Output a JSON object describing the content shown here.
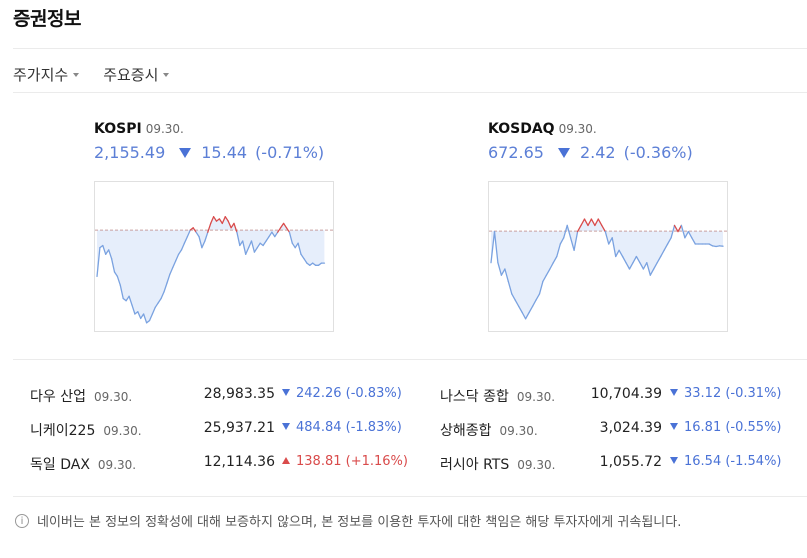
{
  "title": "증권정보",
  "tabs": [
    {
      "label": "주가지수"
    },
    {
      "label": "주요증시"
    }
  ],
  "colors": {
    "up": "#d94b4b",
    "down": "#4a72d6",
    "fill": "#e6eefb",
    "baseline": "#c9a0a0"
  },
  "indices": [
    {
      "name": "KOSPI",
      "date": "09.30.",
      "value": "2,155.49",
      "change": "15.44",
      "percent": "(-0.71%)",
      "direction": "down",
      "chart_data": {
        "type": "line",
        "baseline": 2170.93,
        "ylim": [
          2128,
          2190
        ],
        "values": [
          2150,
          2163,
          2164,
          2160,
          2162,
          2158,
          2152,
          2150,
          2146,
          2140,
          2139,
          2141,
          2137,
          2133,
          2134,
          2131,
          2133,
          2129,
          2130,
          2133,
          2136,
          2138,
          2140,
          2143,
          2147,
          2151,
          2154,
          2157,
          2160,
          2162,
          2165,
          2168,
          2171,
          2172,
          2170,
          2168,
          2163,
          2166,
          2170,
          2174,
          2177,
          2175,
          2176,
          2174,
          2177,
          2175,
          2172,
          2174,
          2170,
          2164,
          2166,
          2160,
          2163,
          2166,
          2161,
          2163,
          2165,
          2164,
          2166,
          2168,
          2170,
          2168,
          2170,
          2172,
          2174,
          2172,
          2170,
          2165,
          2163,
          2165,
          2160,
          2158,
          2156,
          2155,
          2156,
          2155,
          2155,
          2156,
          2156
        ]
      }
    },
    {
      "name": "KOSDAQ",
      "date": "09.30.",
      "value": "672.65",
      "change": "2.42",
      "percent": "(-0.36%)",
      "direction": "down",
      "chart_data": {
        "type": "line",
        "baseline": 675.07,
        "ylim": [
          660,
          682
        ],
        "values": [
          670,
          675,
          670,
          668,
          669,
          667,
          665,
          664,
          663,
          662,
          661,
          662,
          663,
          664,
          665,
          667,
          668,
          669,
          670,
          671,
          673,
          674,
          676,
          674,
          672,
          675,
          676,
          677,
          676,
          677,
          676,
          677,
          676,
          675,
          673,
          674,
          671,
          672,
          671,
          670,
          669,
          670,
          671,
          670,
          669,
          670,
          668,
          669,
          670,
          671,
          672,
          673,
          674,
          676,
          675,
          676,
          674,
          675,
          674,
          673,
          673,
          673,
          673,
          673,
          672.7,
          672.6,
          672.7,
          672.65
        ]
      }
    }
  ],
  "quotes": [
    {
      "name": "다우 산업",
      "date": "09.30.",
      "value": "28,983.35",
      "change": "242.26",
      "percent": "(-0.83%)",
      "direction": "down"
    },
    {
      "name": "나스닥 종합",
      "date": "09.30.",
      "value": "10,704.39",
      "change": "33.12",
      "percent": "(-0.31%)",
      "direction": "down"
    },
    {
      "name": "니케이225",
      "date": "09.30.",
      "value": "25,937.21",
      "change": "484.84",
      "percent": "(-1.83%)",
      "direction": "down"
    },
    {
      "name": "상해종합",
      "date": "09.30.",
      "value": "3,024.39",
      "change": "16.81",
      "percent": "(-0.55%)",
      "direction": "down"
    },
    {
      "name": "독일 DAX",
      "date": "09.30.",
      "value": "12,114.36",
      "change": "138.81",
      "percent": "(+1.16%)",
      "direction": "up"
    },
    {
      "name": "러시아 RTS",
      "date": "09.30.",
      "value": "1,055.72",
      "change": "16.54",
      "percent": "(-1.54%)",
      "direction": "down"
    }
  ],
  "notice": "네이버는 본 정보의 정확성에 대해 보증하지 않으며, 본 정보를 이용한 투자에 대한 책임은 해당 투자자에게 귀속됩니다.",
  "info_icon_glyph": "i"
}
